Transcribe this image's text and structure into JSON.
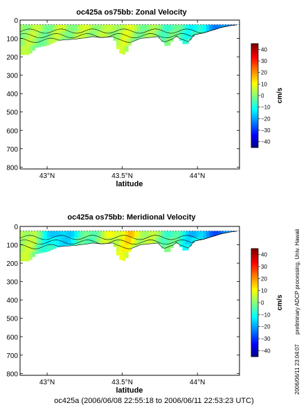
{
  "footer": "oc425a (2006/06/08 22:55:18 to 2006/06/11 22:53:23 UTC)",
  "side_notes": {
    "processing": "preliminary ADCP processing,   Univ. Hawaii",
    "timestamp": "2006/06/11 23:04:07"
  },
  "chart_data": [
    {
      "type": "heatmap",
      "title": "oc425a os75bb: Zonal Velocity",
      "xlabel": "latitude",
      "ylabel": "",
      "x_ticks": [
        "43°N",
        "43.5°N",
        "44°N"
      ],
      "x_tick_values": [
        43.0,
        43.5,
        44.0
      ],
      "xlim": [
        42.82,
        44.28
      ],
      "y_ticks": [
        "0",
        "100",
        "200",
        "300",
        "400",
        "500",
        "600",
        "700",
        "800"
      ],
      "ylim": [
        810,
        0
      ],
      "colorbar": {
        "label": "cm/s",
        "ticks": [
          "40",
          "30",
          "20",
          "10",
          "0",
          "−10",
          "−20",
          "−30",
          "−40"
        ],
        "range": [
          -45,
          45
        ]
      },
      "profile_depth_m": [
        [
          42.82,
          190
        ],
        [
          42.88,
          190
        ],
        [
          42.93,
          150
        ],
        [
          43.0,
          140
        ],
        [
          43.08,
          110
        ],
        [
          43.16,
          105
        ],
        [
          43.24,
          100
        ],
        [
          43.3,
          90
        ],
        [
          43.36,
          95
        ],
        [
          43.44,
          90
        ],
        [
          43.48,
          180
        ],
        [
          43.52,
          190
        ],
        [
          43.56,
          120
        ],
        [
          43.62,
          100
        ],
        [
          43.68,
          95
        ],
        [
          43.74,
          90
        ],
        [
          43.8,
          150
        ],
        [
          43.86,
          85
        ],
        [
          43.92,
          140
        ],
        [
          43.98,
          80
        ],
        [
          44.04,
          70
        ],
        [
          44.1,
          55
        ],
        [
          44.16,
          40
        ],
        [
          44.22,
          30
        ],
        [
          44.28,
          25
        ]
      ],
      "velocity_cm_s": [
        [
          42.82,
          5
        ],
        [
          42.9,
          3
        ],
        [
          43.0,
          2
        ],
        [
          43.1,
          4
        ],
        [
          43.2,
          3
        ],
        [
          43.3,
          6
        ],
        [
          43.4,
          2
        ],
        [
          43.5,
          8
        ],
        [
          43.6,
          3
        ],
        [
          43.7,
          1
        ],
        [
          43.8,
          -3
        ],
        [
          43.9,
          -6
        ],
        [
          44.0,
          -10
        ],
        [
          44.1,
          -18
        ],
        [
          44.2,
          -25
        ],
        [
          44.28,
          -22
        ]
      ]
    },
    {
      "type": "heatmap",
      "title": "oc425a os75bb: Meridional Velocity",
      "xlabel": "latitude",
      "ylabel": "",
      "x_ticks": [
        "43°N",
        "43.5°N",
        "44°N"
      ],
      "x_tick_values": [
        43.0,
        43.5,
        44.0
      ],
      "xlim": [
        42.82,
        44.28
      ],
      "y_ticks": [
        "0",
        "100",
        "200",
        "300",
        "400",
        "500",
        "600",
        "700",
        "800"
      ],
      "ylim": [
        810,
        0
      ],
      "colorbar": {
        "label": "cm/s",
        "ticks": [
          "40",
          "30",
          "20",
          "10",
          "0",
          "−10",
          "−20",
          "−30",
          "−40"
        ],
        "range": [
          -45,
          45
        ]
      },
      "profile_depth_m": [
        [
          42.82,
          190
        ],
        [
          42.88,
          190
        ],
        [
          42.93,
          150
        ],
        [
          43.0,
          140
        ],
        [
          43.08,
          110
        ],
        [
          43.16,
          105
        ],
        [
          43.24,
          100
        ],
        [
          43.3,
          90
        ],
        [
          43.36,
          95
        ],
        [
          43.44,
          90
        ],
        [
          43.48,
          180
        ],
        [
          43.52,
          190
        ],
        [
          43.56,
          120
        ],
        [
          43.62,
          100
        ],
        [
          43.68,
          95
        ],
        [
          43.74,
          90
        ],
        [
          43.8,
          150
        ],
        [
          43.86,
          85
        ],
        [
          43.92,
          140
        ],
        [
          43.98,
          80
        ],
        [
          44.04,
          70
        ],
        [
          44.1,
          55
        ],
        [
          44.16,
          40
        ],
        [
          44.22,
          30
        ],
        [
          44.28,
          25
        ]
      ],
      "velocity_cm_s": [
        [
          42.82,
          8
        ],
        [
          42.9,
          4
        ],
        [
          43.0,
          -10
        ],
        [
          43.08,
          -20
        ],
        [
          43.16,
          -12
        ],
        [
          43.25,
          -5
        ],
        [
          43.35,
          2
        ],
        [
          43.45,
          10
        ],
        [
          43.55,
          14
        ],
        [
          43.65,
          6
        ],
        [
          43.75,
          0
        ],
        [
          43.85,
          -6
        ],
        [
          43.95,
          -14
        ],
        [
          44.05,
          -20
        ],
        [
          44.15,
          -26
        ],
        [
          44.28,
          -18
        ]
      ]
    }
  ]
}
